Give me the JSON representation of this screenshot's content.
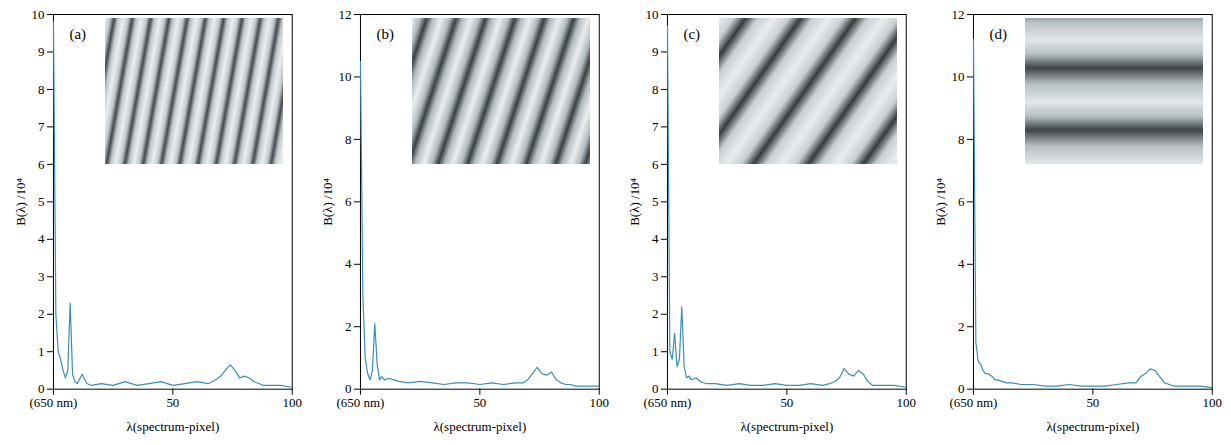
{
  "chart_data": [
    {
      "type": "line",
      "title": "(a)",
      "xlabel": "λ(spectrum-pixel)",
      "ylabel": "B(λ) /10⁴",
      "xlim": [
        0,
        100
      ],
      "xticks": [
        {
          "value": 0,
          "label": "(650 nm)"
        },
        50,
        100
      ],
      "ylim": [
        0,
        10
      ],
      "yticks": [
        0,
        1,
        2,
        3,
        4,
        5,
        6,
        7,
        8,
        9,
        10
      ],
      "color": "#3a8fb7",
      "x": [
        0,
        1,
        2,
        3,
        4,
        5,
        6,
        7,
        8,
        9,
        10,
        12,
        14,
        16,
        20,
        25,
        30,
        35,
        40,
        45,
        50,
        55,
        60,
        65,
        68,
        70,
        72,
        74,
        76,
        78,
        80,
        82,
        84,
        86,
        88,
        90,
        95,
        100
      ],
      "values": [
        9.8,
        2.0,
        1.0,
        0.8,
        0.5,
        0.3,
        0.5,
        2.3,
        0.4,
        0.2,
        0.15,
        0.4,
        0.15,
        0.1,
        0.15,
        0.1,
        0.2,
        0.1,
        0.15,
        0.2,
        0.1,
        0.15,
        0.2,
        0.15,
        0.25,
        0.35,
        0.5,
        0.65,
        0.5,
        0.3,
        0.35,
        0.3,
        0.2,
        0.15,
        0.1,
        0.1,
        0.1,
        0.05
      ]
    },
    {
      "type": "line",
      "title": "(b)",
      "xlabel": "λ(spectrum-pixel)",
      "ylabel": "B(λ) /10⁴",
      "xlim": [
        0,
        100
      ],
      "xticks": [
        {
          "value": 0,
          "label": "(650 nm)"
        },
        50,
        100
      ],
      "ylim": [
        0,
        12
      ],
      "yticks": [
        0,
        2,
        4,
        6,
        8,
        10,
        12
      ],
      "color": "#3a8fb7",
      "x": [
        0,
        1,
        2,
        3,
        4,
        5,
        6,
        7,
        8,
        9,
        10,
        12,
        14,
        16,
        20,
        25,
        30,
        35,
        40,
        45,
        50,
        55,
        60,
        65,
        68,
        70,
        72,
        74,
        76,
        78,
        80,
        82,
        84,
        86,
        88,
        90,
        95,
        100
      ],
      "values": [
        10.5,
        3.0,
        1.0,
        0.5,
        0.3,
        0.6,
        2.1,
        0.8,
        0.3,
        0.4,
        0.3,
        0.35,
        0.3,
        0.25,
        0.2,
        0.25,
        0.2,
        0.15,
        0.2,
        0.2,
        0.15,
        0.2,
        0.15,
        0.2,
        0.2,
        0.3,
        0.5,
        0.7,
        0.5,
        0.45,
        0.55,
        0.3,
        0.2,
        0.15,
        0.15,
        0.1,
        0.1,
        0.1
      ]
    },
    {
      "type": "line",
      "title": "(c)",
      "xlabel": "λ(spectrum-pixel)",
      "ylabel": "B(λ) /10⁴",
      "xlim": [
        0,
        100
      ],
      "xticks": [
        {
          "value": 0,
          "label": "(650 nm)"
        },
        50,
        100
      ],
      "ylim": [
        0,
        10
      ],
      "yticks": [
        0,
        1,
        2,
        3,
        4,
        5,
        6,
        7,
        8,
        9,
        10
      ],
      "color": "#3a8fb7",
      "x": [
        0,
        1,
        2,
        3,
        4,
        5,
        6,
        7,
        8,
        9,
        10,
        12,
        14,
        16,
        20,
        25,
        30,
        35,
        40,
        45,
        50,
        55,
        60,
        65,
        68,
        70,
        72,
        74,
        76,
        78,
        80,
        82,
        84,
        86,
        88,
        90,
        95,
        100
      ],
      "values": [
        9.7,
        1.0,
        0.8,
        1.5,
        0.6,
        0.8,
        2.2,
        0.6,
        0.3,
        0.35,
        0.25,
        0.3,
        0.2,
        0.15,
        0.15,
        0.1,
        0.15,
        0.1,
        0.1,
        0.15,
        0.1,
        0.1,
        0.15,
        0.1,
        0.15,
        0.2,
        0.3,
        0.55,
        0.4,
        0.35,
        0.5,
        0.4,
        0.2,
        0.1,
        0.1,
        0.1,
        0.1,
        0.05
      ]
    },
    {
      "type": "line",
      "title": "(d)",
      "xlabel": "λ(spectrum-pixel)",
      "ylabel": "B(λ) /10⁴",
      "xlim": [
        0,
        100
      ],
      "xticks": [
        {
          "value": 0,
          "label": "(650 nm)"
        },
        50,
        100
      ],
      "ylim": [
        0,
        12
      ],
      "yticks": [
        0,
        2,
        4,
        6,
        8,
        10,
        12
      ],
      "color": "#3a8fb7",
      "x": [
        0,
        1,
        2,
        3,
        4,
        5,
        6,
        7,
        8,
        9,
        10,
        12,
        14,
        16,
        20,
        25,
        30,
        35,
        40,
        45,
        50,
        55,
        60,
        65,
        68,
        70,
        72,
        74,
        76,
        78,
        80,
        82,
        84,
        86,
        88,
        90,
        95,
        100
      ],
      "values": [
        11.2,
        1.5,
        0.9,
        0.8,
        0.6,
        0.5,
        0.5,
        0.45,
        0.4,
        0.3,
        0.3,
        0.25,
        0.2,
        0.2,
        0.15,
        0.15,
        0.1,
        0.1,
        0.15,
        0.1,
        0.1,
        0.1,
        0.15,
        0.2,
        0.2,
        0.4,
        0.5,
        0.65,
        0.6,
        0.4,
        0.2,
        0.15,
        0.1,
        0.1,
        0.1,
        0.1,
        0.1,
        0.05
      ]
    }
  ]
}
